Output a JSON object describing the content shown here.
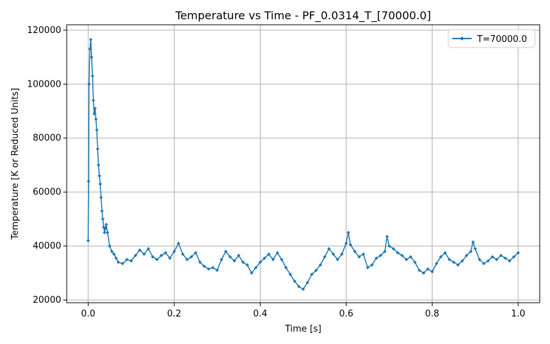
{
  "chart_data": {
    "type": "line",
    "title": "Temperature vs Time - PF_0.0314_T_[70000.0]",
    "xlabel": "Time [s]",
    "ylabel": "Temperature [K or Reduced Units]",
    "xlim": [
      -0.05,
      1.05
    ],
    "ylim": [
      19000,
      122000
    ],
    "xticks": [
      0.0,
      0.2,
      0.4,
      0.6,
      0.8,
      1.0
    ],
    "xtick_labels": [
      "0.0",
      "0.2",
      "0.4",
      "0.6",
      "0.8",
      "1.0"
    ],
    "yticks": [
      20000,
      40000,
      60000,
      80000,
      100000,
      120000
    ],
    "ytick_labels": [
      "20000",
      "40000",
      "60000",
      "80000",
      "100000",
      "120000"
    ],
    "grid": true,
    "legend_position": "top-right",
    "series": [
      {
        "name": "T=70000.0",
        "color": "#1f77b4",
        "marker": "diamond",
        "points": [
          [
            0.0,
            42000
          ],
          [
            0.001,
            64000
          ],
          [
            0.002,
            100000
          ],
          [
            0.004,
            113000
          ],
          [
            0.006,
            116500
          ],
          [
            0.008,
            110000
          ],
          [
            0.01,
            103000
          ],
          [
            0.012,
            94000
          ],
          [
            0.014,
            89000
          ],
          [
            0.016,
            91000
          ],
          [
            0.018,
            87000
          ],
          [
            0.02,
            83000
          ],
          [
            0.022,
            76000
          ],
          [
            0.024,
            70000
          ],
          [
            0.026,
            66000
          ],
          [
            0.028,
            63000
          ],
          [
            0.03,
            58000
          ],
          [
            0.032,
            53000
          ],
          [
            0.034,
            50000
          ],
          [
            0.036,
            47000
          ],
          [
            0.038,
            45000
          ],
          [
            0.04,
            46500
          ],
          [
            0.042,
            48000
          ],
          [
            0.045,
            45000
          ],
          [
            0.05,
            40000
          ],
          [
            0.055,
            38000
          ],
          [
            0.06,
            37000
          ],
          [
            0.065,
            35500
          ],
          [
            0.07,
            34000
          ],
          [
            0.08,
            33500
          ],
          [
            0.09,
            35000
          ],
          [
            0.1,
            34500
          ],
          [
            0.11,
            36500
          ],
          [
            0.12,
            38500
          ],
          [
            0.13,
            37000
          ],
          [
            0.14,
            39000
          ],
          [
            0.15,
            36000
          ],
          [
            0.16,
            35000
          ],
          [
            0.17,
            36500
          ],
          [
            0.18,
            37500
          ],
          [
            0.19,
            35500
          ],
          [
            0.2,
            38000
          ],
          [
            0.21,
            41000
          ],
          [
            0.22,
            37000
          ],
          [
            0.23,
            35000
          ],
          [
            0.24,
            36000
          ],
          [
            0.25,
            37500
          ],
          [
            0.26,
            34000
          ],
          [
            0.27,
            32500
          ],
          [
            0.28,
            31500
          ],
          [
            0.29,
            32000
          ],
          [
            0.3,
            31000
          ],
          [
            0.31,
            35000
          ],
          [
            0.32,
            38000
          ],
          [
            0.33,
            36000
          ],
          [
            0.34,
            34500
          ],
          [
            0.35,
            36500
          ],
          [
            0.36,
            34000
          ],
          [
            0.37,
            33000
          ],
          [
            0.38,
            30000
          ],
          [
            0.39,
            32000
          ],
          [
            0.4,
            34000
          ],
          [
            0.41,
            35500
          ],
          [
            0.42,
            37000
          ],
          [
            0.43,
            35000
          ],
          [
            0.44,
            37500
          ],
          [
            0.45,
            35000
          ],
          [
            0.46,
            32000
          ],
          [
            0.47,
            29500
          ],
          [
            0.48,
            27000
          ],
          [
            0.49,
            25000
          ],
          [
            0.5,
            24000
          ],
          [
            0.51,
            26500
          ],
          [
            0.52,
            29500
          ],
          [
            0.53,
            31000
          ],
          [
            0.54,
            33000
          ],
          [
            0.55,
            36000
          ],
          [
            0.56,
            39000
          ],
          [
            0.57,
            37000
          ],
          [
            0.58,
            35000
          ],
          [
            0.59,
            37000
          ],
          [
            0.6,
            41000
          ],
          [
            0.605,
            45000
          ],
          [
            0.61,
            40500
          ],
          [
            0.62,
            38000
          ],
          [
            0.63,
            36000
          ],
          [
            0.64,
            37000
          ],
          [
            0.65,
            32000
          ],
          [
            0.66,
            33000
          ],
          [
            0.67,
            35500
          ],
          [
            0.68,
            36500
          ],
          [
            0.69,
            38000
          ],
          [
            0.695,
            43500
          ],
          [
            0.7,
            40000
          ],
          [
            0.71,
            39000
          ],
          [
            0.72,
            37500
          ],
          [
            0.73,
            36500
          ],
          [
            0.74,
            35000
          ],
          [
            0.75,
            36000
          ],
          [
            0.76,
            34000
          ],
          [
            0.77,
            31000
          ],
          [
            0.78,
            30000
          ],
          [
            0.79,
            31500
          ],
          [
            0.8,
            30500
          ],
          [
            0.81,
            33500
          ],
          [
            0.82,
            36000
          ],
          [
            0.83,
            37500
          ],
          [
            0.84,
            35000
          ],
          [
            0.85,
            34000
          ],
          [
            0.86,
            33000
          ],
          [
            0.87,
            34500
          ],
          [
            0.88,
            36500
          ],
          [
            0.89,
            38000
          ],
          [
            0.895,
            41500
          ],
          [
            0.9,
            39000
          ],
          [
            0.91,
            35000
          ],
          [
            0.92,
            33500
          ],
          [
            0.93,
            34500
          ],
          [
            0.94,
            36000
          ],
          [
            0.95,
            35000
          ],
          [
            0.96,
            36500
          ],
          [
            0.97,
            35500
          ],
          [
            0.98,
            34500
          ],
          [
            0.99,
            36000
          ],
          [
            1.0,
            37500
          ]
        ]
      }
    ]
  }
}
